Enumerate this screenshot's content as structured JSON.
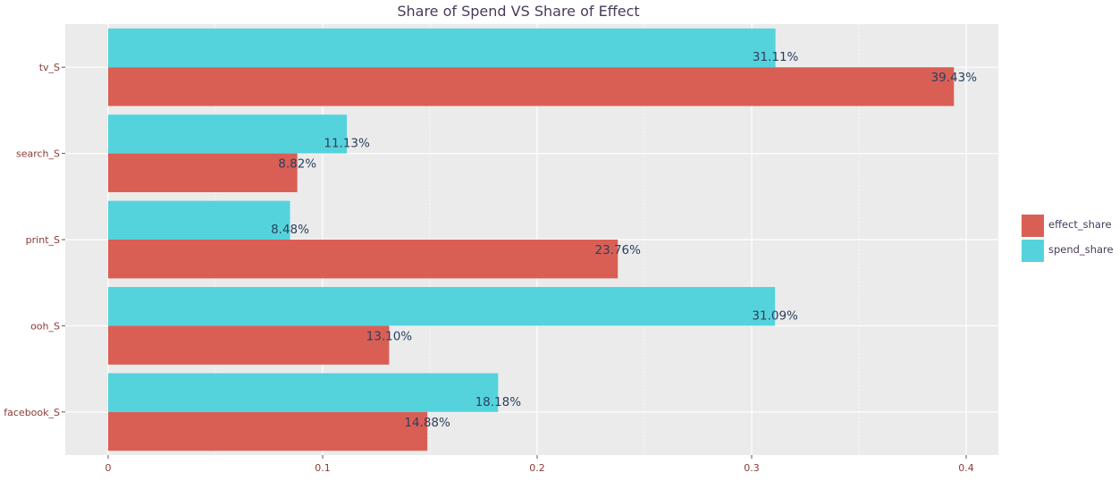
{
  "chart_data": {
    "type": "bar",
    "orientation": "horizontal",
    "title": "Share of Spend VS Share of Effect",
    "xlabel": "",
    "ylabel": "",
    "categories": [
      "tv_S",
      "search_S",
      "print_S",
      "ooh_S",
      "facebook_S"
    ],
    "series": [
      {
        "name": "spend_share",
        "color": "#55d3dc",
        "values": [
          0.3111,
          0.1113,
          0.0848,
          0.3109,
          0.1818
        ],
        "labels": [
          "31.11%",
          "11.13%",
          "8.48%",
          "31.09%",
          "18.18%"
        ]
      },
      {
        "name": "effect_share",
        "color": "#d95f55",
        "values": [
          0.3943,
          0.0882,
          0.2376,
          0.131,
          0.1488
        ],
        "labels": [
          "39.43%",
          "8.82%",
          "23.76%",
          "13.10%",
          "14.88%"
        ]
      }
    ],
    "xticks": [
      0,
      0.1,
      0.2,
      0.3,
      0.4
    ],
    "xtick_labels": [
      "0",
      "0.1",
      "0.2",
      "0.3",
      "0.4"
    ],
    "xlim": [
      -0.02,
      0.415
    ],
    "grid": true,
    "legend_position": "right",
    "legend": [
      {
        "name": "effect_share",
        "color": "#d95f55"
      },
      {
        "name": "spend_share",
        "color": "#55d3dc"
      }
    ],
    "panel_color": "#ebebeb",
    "axis_text_color": "#8b3a3a",
    "label_text_color": "#2a3f5f"
  }
}
